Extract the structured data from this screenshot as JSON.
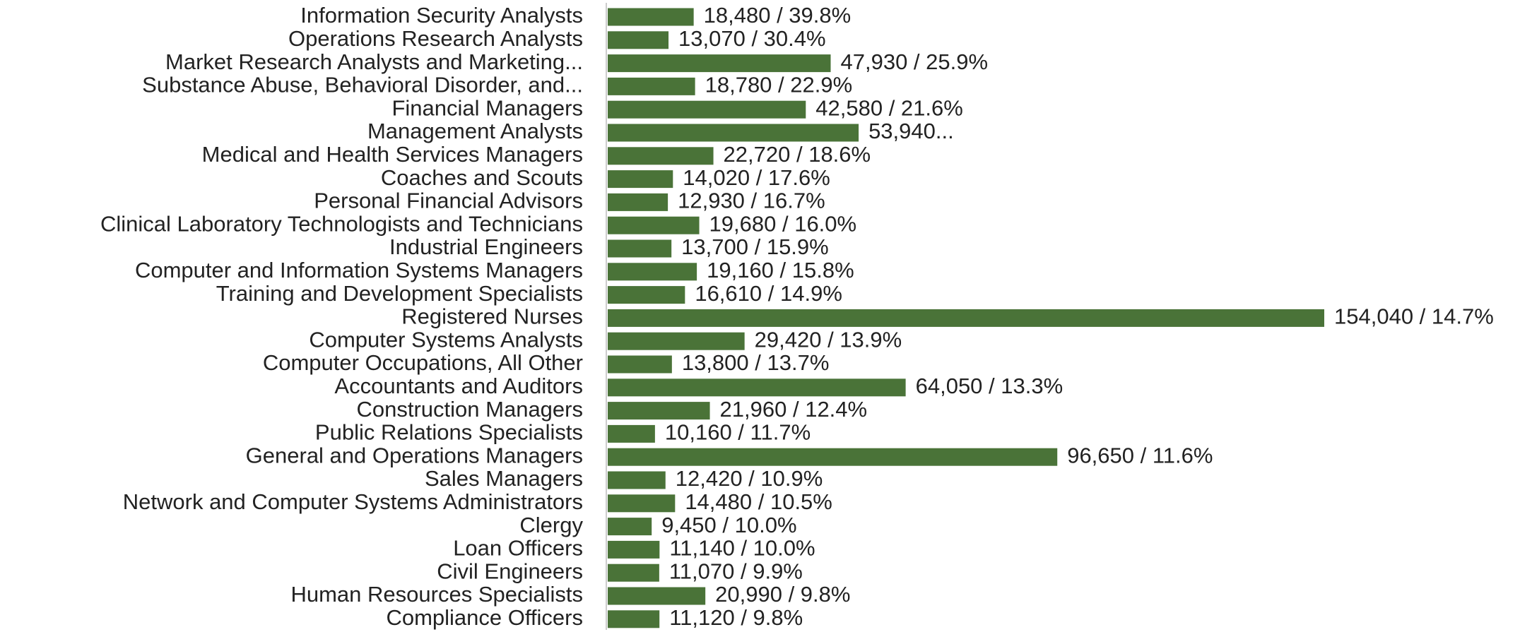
{
  "chart_data": {
    "type": "barh",
    "color": "#4a7338",
    "categories": [
      "Information Security Analysts",
      "Operations Research Analysts",
      "Market Research Analysts and Marketing...",
      "Substance Abuse, Behavioral Disorder, and...",
      "Financial Managers",
      "Management Analysts",
      "Medical and Health Services Managers",
      "Coaches and Scouts",
      "Personal Financial Advisors",
      "Clinical Laboratory Technologists and Technicians",
      "Industrial Engineers",
      "Computer and Information Systems Managers",
      "Training and Development Specialists",
      "Registered Nurses",
      "Computer Systems Analysts",
      "Computer Occupations, All Other",
      "Accountants and Auditors",
      "Construction Managers",
      "Public Relations Specialists",
      "General and Operations Managers",
      "Sales Managers",
      "Network and Computer Systems Administrators",
      "Clergy",
      "Loan Officers",
      "Civil Engineers",
      "Human Resources Specialists",
      "Compliance Officers"
    ],
    "values": [
      18480,
      13070,
      47930,
      18780,
      42580,
      53940,
      22720,
      14020,
      12930,
      19680,
      13700,
      19160,
      16610,
      154040,
      29420,
      13800,
      64050,
      21960,
      10160,
      96650,
      12420,
      14480,
      9450,
      11140,
      11070,
      20990,
      11120
    ],
    "value_labels": [
      "18,480 / 39.8%",
      "13,070 / 30.4%",
      "47,930 / 25.9%",
      "18,780 / 22.9%",
      "42,580 / 21.6%",
      "53,940...",
      "22,720 / 18.6%",
      "14,020 / 17.6%",
      "12,930 / 16.7%",
      "19,680 / 16.0%",
      "13,700 / 15.9%",
      "19,160 / 15.8%",
      "16,610 / 14.9%",
      "154,040 / 14.7%",
      "29,420 / 13.9%",
      "13,800 / 13.7%",
      "64,050 / 13.3%",
      "21,960 / 12.4%",
      "10,160 / 11.7%",
      "96,650 / 11.6%",
      "12,420 / 10.9%",
      "14,480 / 10.5%",
      "9,450 / 10.0%",
      "11,140 / 10.0%",
      "11,070 / 9.9%",
      "20,990 / 9.8%",
      "11,120 / 9.8%"
    ]
  }
}
